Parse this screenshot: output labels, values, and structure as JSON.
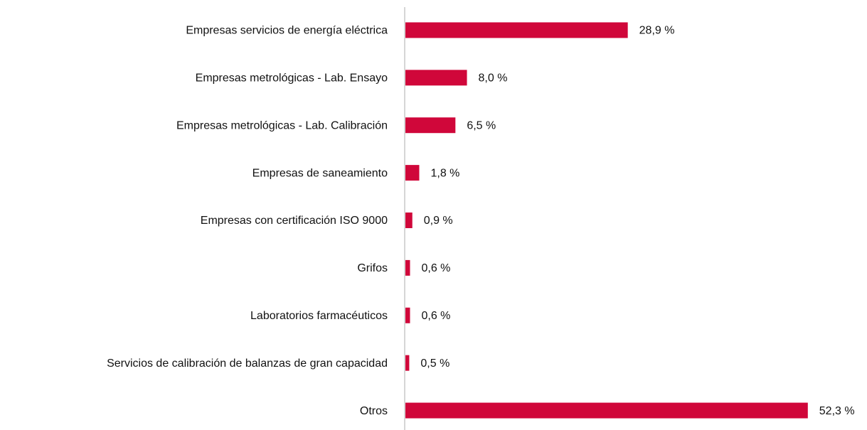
{
  "chart_data": {
    "type": "barh",
    "categories": [
      "Empresas servicios de energía eléctrica",
      "Empresas metrológicas - Lab. Ensayo",
      "Empresas metrológicas - Lab. Calibración",
      "Empresas de saneamiento",
      "Empresas con certificación ISO 9000",
      "Grifos",
      "Laboratorios farmacéuticos",
      "Servicios de calibración de balanzas de gran capacidad",
      "Otros"
    ],
    "values": [
      28.9,
      8.0,
      6.5,
      1.8,
      0.9,
      0.6,
      0.6,
      0.5,
      52.3
    ],
    "value_labels": [
      "28,9 %",
      "8,0 %",
      "6,5 %",
      "1,8 %",
      "0,9 %",
      "0,6 %",
      "0,6 %",
      "0,5 %",
      "52,3 %"
    ],
    "color": "#d0073a",
    "xlim": [
      0,
      55
    ]
  }
}
